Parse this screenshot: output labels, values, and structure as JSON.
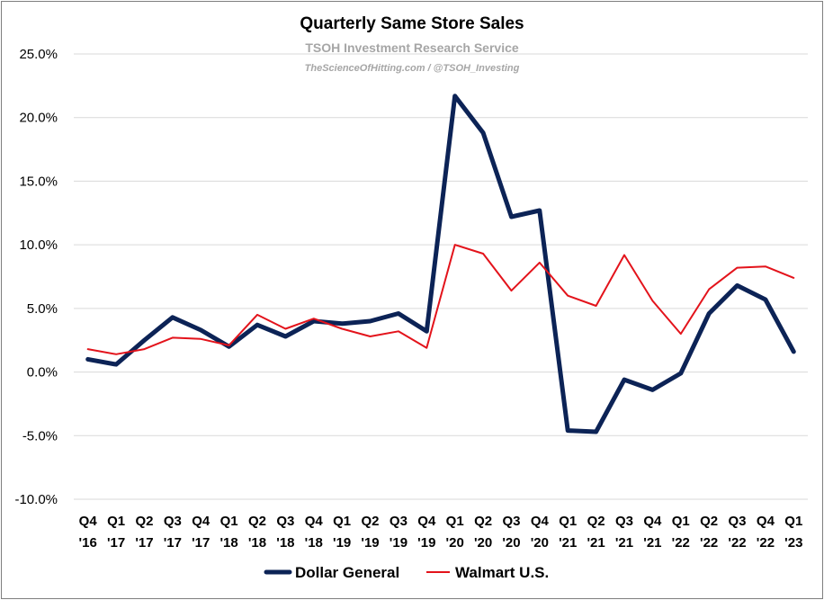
{
  "chart_data": {
    "type": "line",
    "title": "Quarterly Same Store Sales",
    "subtitle": "TSOH Investment Research Service",
    "credit": "TheScienceOfHitting.com / @TSOH_Investing",
    "categories": [
      [
        "Q4",
        "'16"
      ],
      [
        "Q1",
        "'17"
      ],
      [
        "Q2",
        "'17"
      ],
      [
        "Q3",
        "'17"
      ],
      [
        "Q4",
        "'17"
      ],
      [
        "Q1",
        "'18"
      ],
      [
        "Q2",
        "'18"
      ],
      [
        "Q3",
        "'18"
      ],
      [
        "Q4",
        "'18"
      ],
      [
        "Q1",
        "'19"
      ],
      [
        "Q2",
        "'19"
      ],
      [
        "Q3",
        "'19"
      ],
      [
        "Q4",
        "'19"
      ],
      [
        "Q1",
        "'20"
      ],
      [
        "Q2",
        "'20"
      ],
      [
        "Q3",
        "'20"
      ],
      [
        "Q4",
        "'20"
      ],
      [
        "Q1",
        "'21"
      ],
      [
        "Q2",
        "'21"
      ],
      [
        "Q3",
        "'21"
      ],
      [
        "Q4",
        "'21"
      ],
      [
        "Q1",
        "'22"
      ],
      [
        "Q2",
        "'22"
      ],
      [
        "Q3",
        "'22"
      ],
      [
        "Q4",
        "'22"
      ],
      [
        "Q1",
        "'23"
      ]
    ],
    "series": [
      {
        "name": "Dollar General",
        "color": "#0c2356",
        "line": "thick",
        "values": [
          1.0,
          0.6,
          2.5,
          4.3,
          3.3,
          2.0,
          3.7,
          2.8,
          4.0,
          3.8,
          4.0,
          4.6,
          3.2,
          21.7,
          18.8,
          12.2,
          12.7,
          -4.6,
          -4.7,
          -0.6,
          -1.4,
          -0.1,
          4.6,
          6.8,
          5.7,
          1.6
        ]
      },
      {
        "name": "Walmart U.S.",
        "color": "#e3131b",
        "line": "thin",
        "values": [
          1.8,
          1.4,
          1.8,
          2.7,
          2.6,
          2.1,
          4.5,
          3.4,
          4.2,
          3.4,
          2.8,
          3.2,
          1.9,
          10.0,
          9.3,
          6.4,
          8.6,
          6.0,
          5.2,
          9.2,
          5.6,
          3.0,
          6.5,
          8.2,
          8.3,
          7.4
        ]
      }
    ],
    "ylim": [
      -10,
      25
    ],
    "yticks": [
      "-10.0%",
      "-5.0%",
      "0.0%",
      "5.0%",
      "10.0%",
      "15.0%",
      "20.0%",
      "25.0%"
    ],
    "ytick_values": [
      -10,
      -5,
      0,
      5,
      10,
      15,
      20,
      25
    ],
    "grid": true,
    "legend_position": "bottom"
  }
}
